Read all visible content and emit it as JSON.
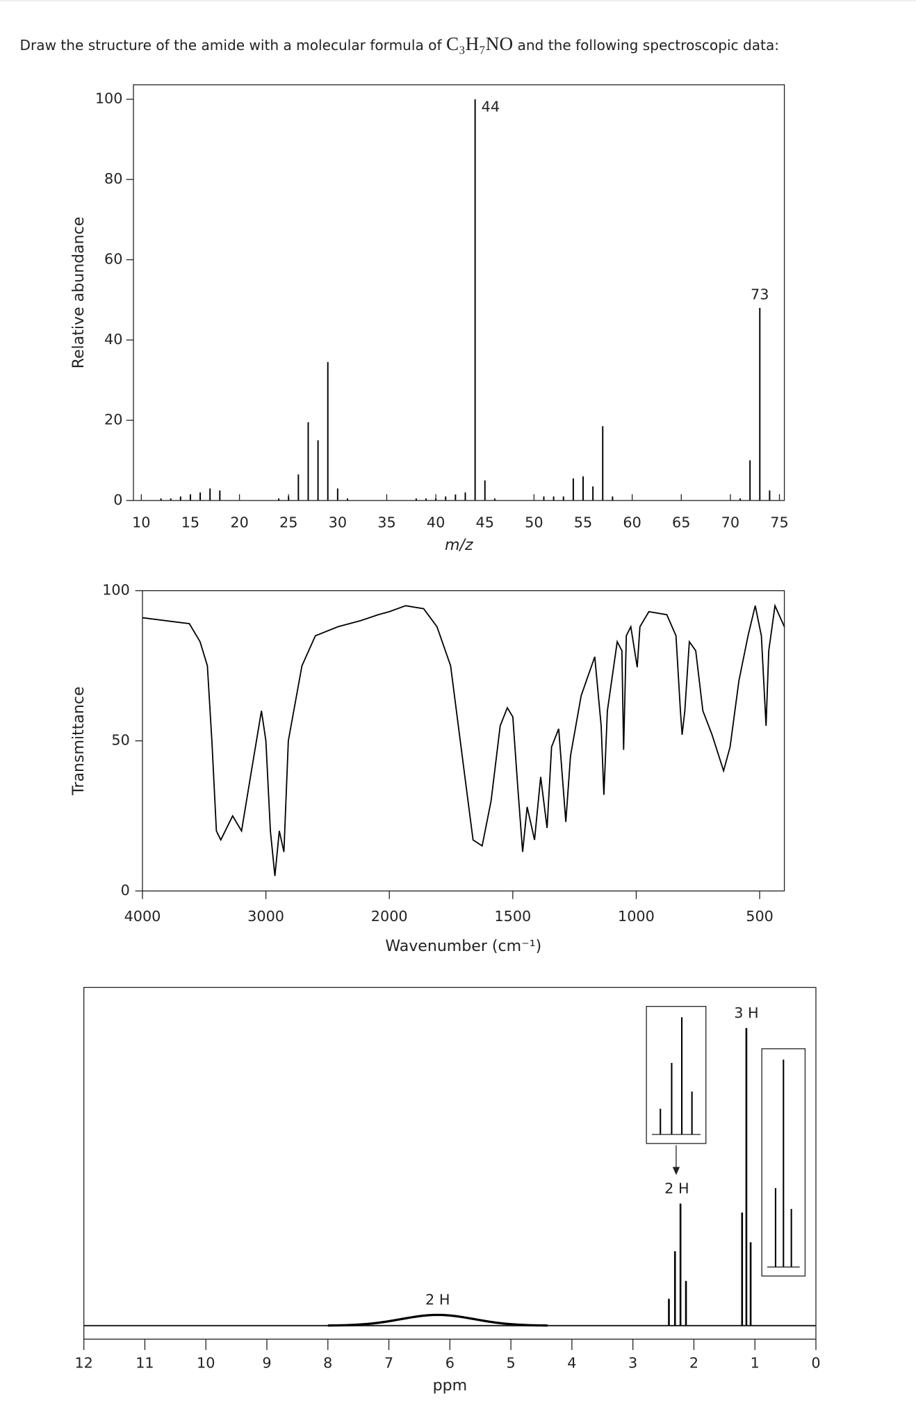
{
  "question": {
    "text": "Draw the structure of the amide with a molecular formula of",
    "formula": "C₃H₇NO",
    "text_after": "and the following spectroscopic data:"
  },
  "chart_data": [
    {
      "type": "bar",
      "xlabel": "m/z",
      "ylabel": "Relative abundance",
      "x": [
        12,
        13,
        14,
        15,
        16,
        17,
        18,
        24,
        25,
        26,
        27,
        28,
        29,
        30,
        31,
        38,
        39,
        40,
        41,
        42,
        43,
        44,
        45,
        46,
        51,
        52,
        53,
        54,
        55,
        56,
        57,
        58,
        71,
        72,
        73,
        74
      ],
      "values": [
        0.5,
        0.5,
        1,
        1.5,
        2,
        3,
        2.5,
        0.5,
        1,
        6.5,
        19.5,
        15,
        34.5,
        3,
        0.5,
        0.5,
        0.5,
        0.5,
        1,
        1.5,
        2,
        100,
        5,
        0.5,
        1,
        1,
        1,
        5.5,
        6,
        3.5,
        18.5,
        1,
        0.5,
        10,
        48,
        2.5
      ],
      "xlim": [
        9.2,
        75.5
      ],
      "ylim": [
        0,
        103.6
      ],
      "xticks": [
        10,
        15,
        20,
        25,
        30,
        35,
        40,
        45,
        50,
        55,
        60,
        65,
        70,
        75
      ],
      "yticks": [
        0,
        20,
        40,
        60,
        80,
        100
      ],
      "annotations": [
        {
          "text": "44",
          "x": 44
        },
        {
          "text": "73",
          "x": 73
        }
      ],
      "color": "#000000"
    },
    {
      "type": "line",
      "xlabel": "Wavenumber (cm⁻¹)",
      "ylabel": "Transmittance",
      "x": [
        4000,
        3620,
        3533,
        3474,
        3438,
        3401,
        3365,
        3270,
        3197,
        3109,
        3036,
        3000,
        2964,
        2927,
        2891,
        2854,
        2818,
        2708,
        2599,
        2416,
        2234,
        2088,
        2000,
        1934,
        1861,
        1807,
        1752,
        1697,
        1661,
        1624,
        1588,
        1551,
        1522,
        1500,
        1480,
        1460,
        1442,
        1412,
        1387,
        1361,
        1343,
        1314,
        1285,
        1266,
        1223,
        1168,
        1142,
        1131,
        1117,
        1077,
        1058,
        1051,
        1040,
        1022,
        996,
        985,
        949,
        876,
        839,
        821,
        814,
        803,
        785,
        759,
        730,
        693,
        646,
        620,
        584,
        547,
        518,
        493,
        474,
        463,
        438,
        400
      ],
      "values": [
        91,
        89,
        83,
        75,
        50,
        20,
        17,
        25,
        20,
        42,
        60,
        50,
        20,
        5,
        20,
        13,
        50,
        75,
        85,
        88,
        90,
        92,
        93,
        95,
        94,
        88,
        75,
        40,
        17,
        15,
        30,
        55,
        61,
        58,
        35,
        13,
        28,
        17,
        38,
        21,
        48,
        54,
        23,
        45,
        65,
        78,
        55,
        32,
        60,
        83,
        80,
        47,
        85,
        88,
        74.5,
        88,
        93,
        92,
        85,
        60,
        52,
        60,
        83,
        80,
        60,
        52,
        40,
        48,
        70,
        85,
        95,
        85,
        55,
        80,
        95,
        88
      ],
      "xlim": [
        4000,
        400
      ],
      "ylim": [
        0,
        100
      ],
      "xticks": [
        4000,
        3000,
        2000,
        1500,
        1000,
        500
      ],
      "yticks": [
        0,
        50,
        100
      ],
      "x_scale_break": 2000,
      "x_scale_factor_below_break": 2,
      "color": "#000000"
    },
    {
      "type": "nmr",
      "xlabel": "ppm",
      "xlim": [
        12,
        0
      ],
      "xticks": [
        12,
        11,
        10,
        9,
        8,
        7,
        6,
        5,
        4,
        3,
        2,
        1,
        0
      ],
      "peaks": [
        {
          "ppm": 2.41,
          "intensity": 9
        },
        {
          "ppm": 2.31,
          "intensity": 25
        },
        {
          "ppm": 2.22,
          "intensity": 41
        },
        {
          "ppm": 2.13,
          "intensity": 15
        },
        {
          "ppm": 1.21,
          "intensity": 38
        },
        {
          "ppm": 1.14,
          "intensity": 100
        },
        {
          "ppm": 1.07,
          "intensity": 28
        }
      ],
      "broad_peaks": [
        {
          "ppm": 6.2,
          "intensity": 3.6,
          "width": 0.6
        }
      ],
      "annotations": [
        {
          "text": "2 H",
          "ppm": 6.2
        },
        {
          "text": "2 H",
          "ppm": 2.28
        },
        {
          "text": "3 H",
          "ppm": 1.14
        }
      ],
      "color": "#000000"
    }
  ]
}
